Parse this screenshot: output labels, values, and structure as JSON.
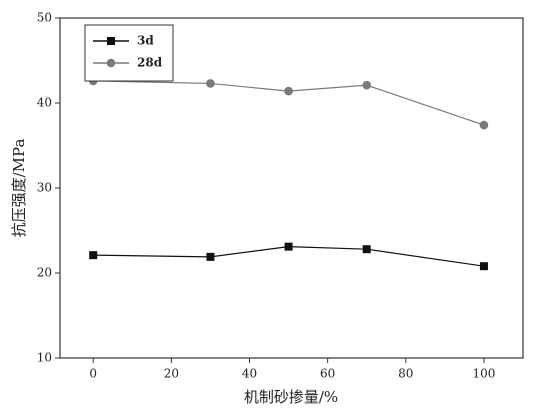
{
  "chart_data": {
    "type": "line",
    "x_label": "机制砂掺量/%",
    "y_label": "抗压强度/MPa",
    "x": [
      0,
      30,
      50,
      70,
      100
    ],
    "series": [
      {
        "name": "3d",
        "color": "#111111",
        "marker": "square",
        "values": [
          22.1,
          21.9,
          23.1,
          22.8,
          20.8
        ]
      },
      {
        "name": "28d",
        "color": "#7a7a7a",
        "marker": "circle",
        "values": [
          42.6,
          42.3,
          41.4,
          42.1,
          37.4
        ]
      }
    ],
    "xlim": [
      -8.5,
      110
    ],
    "xticks": [
      0,
      20,
      40,
      60,
      80,
      100
    ],
    "ylim": [
      10,
      50
    ],
    "yticks": [
      10,
      20,
      30,
      40,
      50
    ],
    "grid": false,
    "legend": "upper-left"
  }
}
